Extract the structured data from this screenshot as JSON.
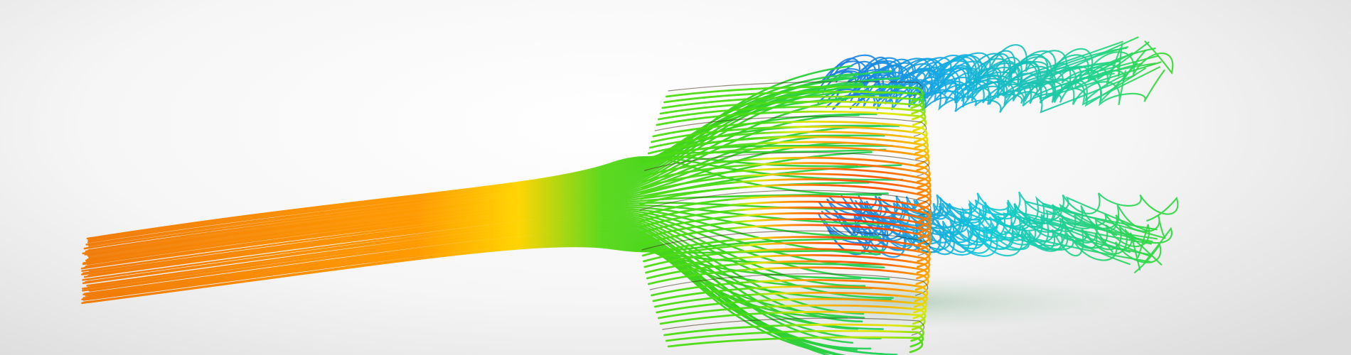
{
  "scene": {
    "subject": "streamline-visualization",
    "background_color": "#f2f2f2",
    "colormap": [
      "#ff2a00",
      "#ff6a00",
      "#ff9a00",
      "#ffd000",
      "#c8f000",
      "#4cdc12",
      "#00d4b0",
      "#00b4e0",
      "#1e6ee0"
    ],
    "inflow_color": "#f5820a",
    "core_color": "#ff3300",
    "wake_color": "#10b4dc"
  }
}
